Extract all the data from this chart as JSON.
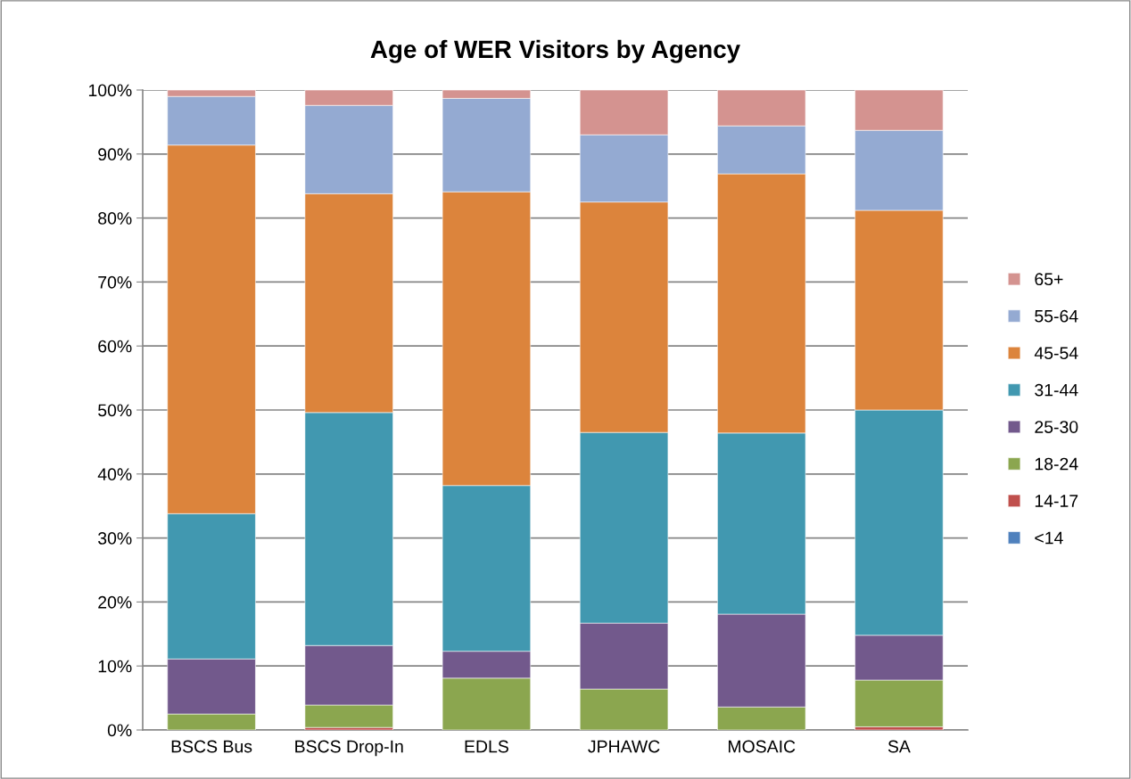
{
  "chart_data": {
    "type": "bar",
    "title": "Age of WER Visitors by Agency",
    "stacked": true,
    "categories": [
      "BSCS Bus",
      "BSCS Drop-In",
      "EDLS",
      "JPHAWC",
      "MOSAIC",
      "SA"
    ],
    "series": [
      {
        "name": "<14",
        "color": "#4f81bd",
        "values": [
          0,
          0,
          0,
          0,
          0,
          0
        ]
      },
      {
        "name": "14-17",
        "color": "#c0504d",
        "values": [
          0,
          0.4,
          0,
          0,
          0,
          0.5
        ]
      },
      {
        "name": "18-24",
        "color": "#8ba64f",
        "values": [
          2.5,
          3.5,
          8.1,
          6.4,
          3.6,
          7.3
        ]
      },
      {
        "name": "25-30",
        "color": "#72598c",
        "values": [
          8.6,
          9.3,
          4.2,
          10.3,
          14.5,
          7.0
        ]
      },
      {
        "name": "31-44",
        "color": "#4198b0",
        "values": [
          22.7,
          36.4,
          25.9,
          29.8,
          28.3,
          35.2
        ]
      },
      {
        "name": "45-54",
        "color": "#dc843c",
        "values": [
          57.6,
          34.2,
          45.9,
          36.0,
          40.5,
          31.2
        ]
      },
      {
        "name": "55-64",
        "color": "#94aad2",
        "values": [
          7.6,
          13.8,
          14.6,
          10.5,
          7.5,
          12.5
        ]
      },
      {
        "name": "65+",
        "color": "#d49390",
        "values": [
          1.0,
          2.4,
          1.3,
          7.0,
          5.6,
          6.3
        ]
      }
    ],
    "ylim": [
      0,
      100
    ],
    "yticks": [
      {
        "value": 0,
        "label": "0%"
      },
      {
        "value": 10,
        "label": "10%"
      },
      {
        "value": 20,
        "label": "20%"
      },
      {
        "value": 30,
        "label": "30%"
      },
      {
        "value": 40,
        "label": "40%"
      },
      {
        "value": 50,
        "label": "50%"
      },
      {
        "value": 60,
        "label": "60%"
      },
      {
        "value": 70,
        "label": "70%"
      },
      {
        "value": 80,
        "label": "80%"
      },
      {
        "value": 90,
        "label": "90%"
      },
      {
        "value": 100,
        "label": "100%"
      }
    ],
    "grid": "y",
    "legend": "right"
  }
}
